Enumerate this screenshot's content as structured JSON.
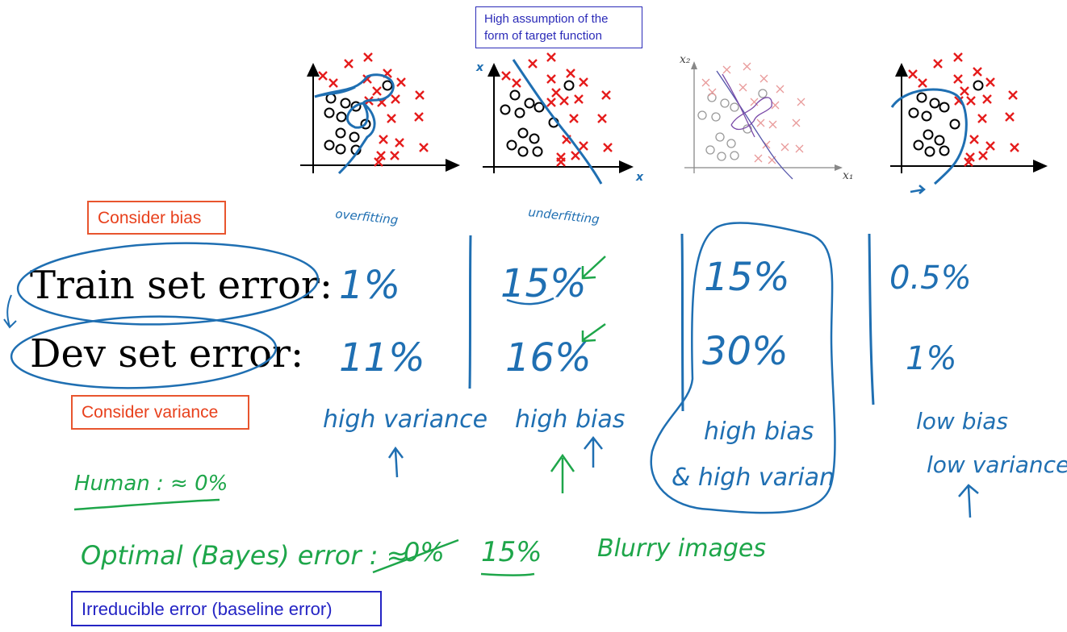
{
  "callout": {
    "line1": "High assumption of the",
    "line2": "form of target function"
  },
  "labels": {
    "train": "Train set error:",
    "dev": "Dev set error:",
    "consider_bias": "Consider bias",
    "consider_variance": "Consider variance",
    "irreducible": "Irreducible error (baseline error)"
  },
  "plots": {
    "underfit_x_axis": "x",
    "underfit_y_axis": "x",
    "mid_x_axis": "x₁",
    "mid_y_axis": "x₂",
    "overfit_note": "overfitting",
    "underfit_note": "underfitting"
  },
  "columns": [
    {
      "train": "1%",
      "dev": "11%",
      "diagnosis": "high variance"
    },
    {
      "train": "15%",
      "dev": "16%",
      "diagnosis": "high bias"
    },
    {
      "train": "15%",
      "dev": "30%",
      "diagnosis_1": "high bias",
      "diagnosis_2": "& high varian"
    },
    {
      "train": "0.5%",
      "dev": "1%",
      "diagnosis_1": "low bias",
      "diagnosis_2": "low variance"
    }
  ],
  "notes": {
    "human": "Human : ≈ 0%",
    "optimal": "Optimal (Bayes) error : ≈",
    "zero_struck": "0%",
    "fifteen": "15%",
    "blurry": "Blurry images"
  },
  "colors": {
    "ink_blue": "#1f6fb2",
    "ink_green": "#1ea64a",
    "cross_red": "#e51c1c",
    "orange": "#e8401c",
    "navy": "#2424c4"
  }
}
